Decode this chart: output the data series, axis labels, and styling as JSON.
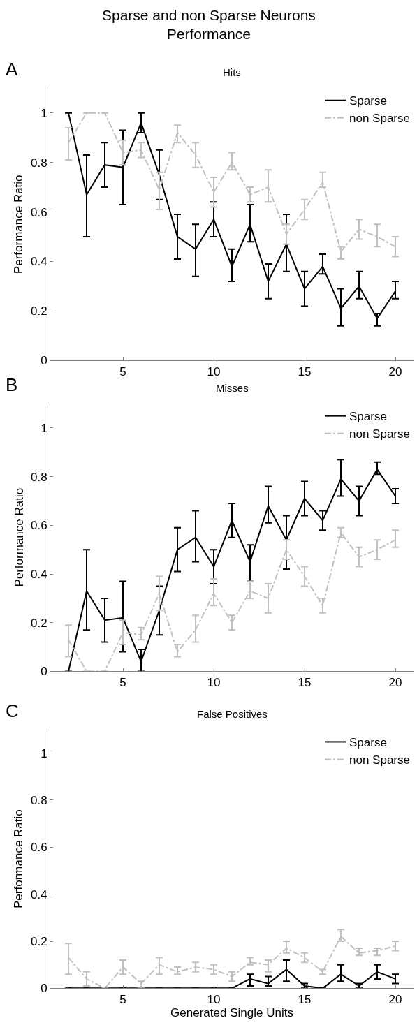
{
  "chart_data": [
    {
      "type": "line",
      "title": "Sparse and non Sparse Neurons\nPerformance",
      "subtitle": "Hits",
      "ylabel": "Performance Ratio",
      "annotations": [
        "A"
      ],
      "x": [
        2,
        3,
        4,
        5,
        6,
        7,
        8,
        9,
        10,
        11,
        12,
        13,
        14,
        15,
        16,
        17,
        18,
        19,
        20
      ],
      "xlim": [
        1,
        21
      ],
      "xticks": [
        5,
        10,
        15,
        20
      ],
      "ylim": [
        0,
        1.1
      ],
      "yticks": [
        0,
        {
          "value": 0.2,
          "label": "0.2"
        },
        {
          "value": 0.4,
          "label": "0.4"
        },
        {
          "value": 0.6,
          "label": "0.6"
        },
        {
          "value": 0.8,
          "label": "0.8"
        },
        1
      ],
      "legend": "top right",
      "marker": "none",
      "series": [
        {
          "name": "Sparse",
          "color": "#000000",
          "line_style": "solid",
          "values": [
            1.0,
            0.67,
            0.79,
            0.78,
            0.96,
            0.75,
            0.5,
            0.45,
            0.57,
            0.38,
            0.55,
            0.32,
            0.47,
            0.29,
            0.38,
            0.21,
            0.3,
            0.17,
            0.28
          ],
          "errors": [
            null,
            [
              0.5,
              0.83
            ],
            [
              0.7,
              0.88
            ],
            [
              0.63,
              0.93
            ],
            [
              0.92,
              1.0
            ],
            [
              0.65,
              0.85
            ],
            [
              0.41,
              0.59
            ],
            [
              0.34,
              0.55
            ],
            [
              0.5,
              0.64
            ],
            [
              0.32,
              0.45
            ],
            [
              0.48,
              0.63
            ],
            [
              0.25,
              0.39
            ],
            [
              0.36,
              0.59
            ],
            [
              0.22,
              0.36
            ],
            [
              0.35,
              0.43
            ],
            [
              0.14,
              0.29
            ],
            [
              0.25,
              0.36
            ],
            [
              0.14,
              0.19
            ],
            [
              0.25,
              0.32
            ]
          ]
        },
        {
          "name": "non Sparse",
          "color": "#c0c0c0",
          "line_style": "dashed",
          "values": [
            0.88,
            1.0,
            1.0,
            0.84,
            0.85,
            0.69,
            0.92,
            0.83,
            0.68,
            0.8,
            0.67,
            0.7,
            0.51,
            0.61,
            0.72,
            0.44,
            0.53,
            0.5,
            0.46
          ],
          "errors": [
            [
              0.81,
              0.94
            ],
            null,
            null,
            [
              0.79,
              0.89
            ],
            [
              0.82,
              0.88
            ],
            [
              0.61,
              0.76
            ],
            [
              0.88,
              0.95
            ],
            [
              0.78,
              0.88
            ],
            [
              0.62,
              0.74
            ],
            [
              0.77,
              0.84
            ],
            [
              0.64,
              0.7
            ],
            [
              0.64,
              0.77
            ],
            [
              0.47,
              0.55
            ],
            [
              0.57,
              0.65
            ],
            [
              0.7,
              0.76
            ],
            [
              0.41,
              0.46
            ],
            [
              0.49,
              0.57
            ],
            [
              0.46,
              0.55
            ],
            [
              0.42,
              0.5
            ]
          ]
        }
      ]
    },
    {
      "type": "line",
      "title": "Misses",
      "ylabel": "Performance Ratio",
      "annotations": [
        "B"
      ],
      "x": [
        2,
        3,
        4,
        5,
        6,
        7,
        8,
        9,
        10,
        11,
        12,
        13,
        14,
        15,
        16,
        17,
        18,
        19,
        20
      ],
      "xlim": [
        1,
        21
      ],
      "xticks": [
        5,
        10,
        15,
        20
      ],
      "ylim": [
        0,
        1.1
      ],
      "yticks": [
        0,
        {
          "value": 0.2,
          "label": "0.2"
        },
        {
          "value": 0.4,
          "label": "0.4"
        },
        {
          "value": 0.6,
          "label": "0.6"
        },
        {
          "value": 0.8,
          "label": "0.8"
        },
        1
      ],
      "legend": "top right",
      "marker": "none",
      "series": [
        {
          "name": "Sparse",
          "color": "#000000",
          "line_style": "solid",
          "values": [
            0,
            0.33,
            0.21,
            0.22,
            0.04,
            0.25,
            0.5,
            0.55,
            0.43,
            0.62,
            0.45,
            0.68,
            0.54,
            0.71,
            0.62,
            0.79,
            0.7,
            0.83,
            0.72
          ],
          "errors": [
            null,
            [
              0.17,
              0.5
            ],
            [
              0.12,
              0.3
            ],
            [
              0.08,
              0.37
            ],
            [
              0,
              0.09
            ],
            [
              0.15,
              0.35
            ],
            [
              0.41,
              0.59
            ],
            [
              0.45,
              0.66
            ],
            [
              0.36,
              0.5
            ],
            [
              0.55,
              0.69
            ],
            [
              0.37,
              0.52
            ],
            [
              0.61,
              0.76
            ],
            [
              0.42,
              0.64
            ],
            [
              0.64,
              0.78
            ],
            [
              0.58,
              0.66
            ],
            [
              0.72,
              0.87
            ],
            [
              0.64,
              0.76
            ],
            [
              0.81,
              0.86
            ],
            [
              0.69,
              0.75
            ]
          ]
        },
        {
          "name": "non Sparse",
          "color": "#c0c0c0",
          "line_style": "dashed",
          "values": [
            0.13,
            0,
            0,
            0.16,
            0.15,
            0.32,
            0.08,
            0.17,
            0.32,
            0.2,
            0.33,
            0.3,
            0.5,
            0.39,
            0.27,
            0.57,
            0.47,
            0.5,
            0.54
          ],
          "errors": [
            [
              0.06,
              0.19
            ],
            null,
            null,
            [
              0.11,
              0.21
            ],
            [
              0.13,
              0.18
            ],
            [
              0.25,
              0.39
            ],
            [
              0.06,
              0.11
            ],
            [
              0.12,
              0.23
            ],
            [
              0.27,
              0.38
            ],
            [
              0.17,
              0.23
            ],
            [
              0.3,
              0.37
            ],
            [
              0.24,
              0.36
            ],
            [
              0.46,
              0.54
            ],
            [
              0.35,
              0.43
            ],
            [
              0.24,
              0.3
            ],
            [
              0.55,
              0.59
            ],
            [
              0.43,
              0.51
            ],
            [
              0.46,
              0.54
            ],
            [
              0.51,
              0.58
            ]
          ]
        }
      ]
    },
    {
      "type": "line",
      "title": "False Positives",
      "xlabel": "Generated Single Units",
      "ylabel": "Performance Ratio",
      "annotations": [
        "C"
      ],
      "x": [
        2,
        3,
        4,
        5,
        6,
        7,
        8,
        9,
        10,
        11,
        12,
        13,
        14,
        15,
        16,
        17,
        18,
        19,
        20
      ],
      "xlim": [
        1,
        21
      ],
      "xticks": [
        5,
        10,
        15,
        20
      ],
      "ylim": [
        0,
        1.1
      ],
      "yticks": [
        0,
        {
          "value": 0.2,
          "label": "0.2"
        },
        {
          "value": 0.4,
          "label": "0.4"
        },
        {
          "value": 0.6,
          "label": "0.6"
        },
        {
          "value": 0.8,
          "label": "0.8"
        },
        1
      ],
      "legend": "top right",
      "marker": "none",
      "series": [
        {
          "name": "Sparse",
          "color": "#000000",
          "line_style": "solid",
          "values": [
            0,
            0,
            0,
            0,
            0,
            0,
            0,
            0,
            0,
            0,
            0.04,
            0.02,
            0.08,
            0.01,
            0,
            0.06,
            0.01,
            0.07,
            0.04
          ],
          "errors": [
            null,
            null,
            null,
            null,
            null,
            null,
            null,
            null,
            null,
            null,
            [
              0.01,
              0.06
            ],
            [
              0.01,
              0.05
            ],
            [
              0.03,
              0.12
            ],
            [
              0,
              0.02
            ],
            null,
            [
              0.03,
              0.1
            ],
            [
              0,
              0.02
            ],
            [
              0.04,
              0.1
            ],
            [
              0.02,
              0.06
            ]
          ]
        },
        {
          "name": "non Sparse",
          "color": "#c0c0c0",
          "line_style": "dashed",
          "values": [
            0.13,
            0.04,
            0,
            0.09,
            0.02,
            0.1,
            0.07,
            0.09,
            0.08,
            0.05,
            0.11,
            0.1,
            0.17,
            0.13,
            0.07,
            0.22,
            0.15,
            0.16,
            0.18
          ],
          "errors": [
            [
              0.06,
              0.19
            ],
            [
              0.01,
              0.07
            ],
            null,
            [
              0.06,
              0.12
            ],
            [
              0,
              0.03
            ],
            [
              0.06,
              0.13
            ],
            [
              0.06,
              0.09
            ],
            [
              0.07,
              0.11
            ],
            [
              0.06,
              0.1
            ],
            [
              0.03,
              0.07
            ],
            [
              0.1,
              0.13
            ],
            [
              0.07,
              0.12
            ],
            [
              0.15,
              0.2
            ],
            [
              0.11,
              0.15
            ],
            [
              0.06,
              0.08
            ],
            [
              0.2,
              0.25
            ],
            [
              0.14,
              0.17
            ],
            [
              0.14,
              0.17
            ],
            [
              0.16,
              0.2
            ]
          ]
        }
      ]
    }
  ]
}
